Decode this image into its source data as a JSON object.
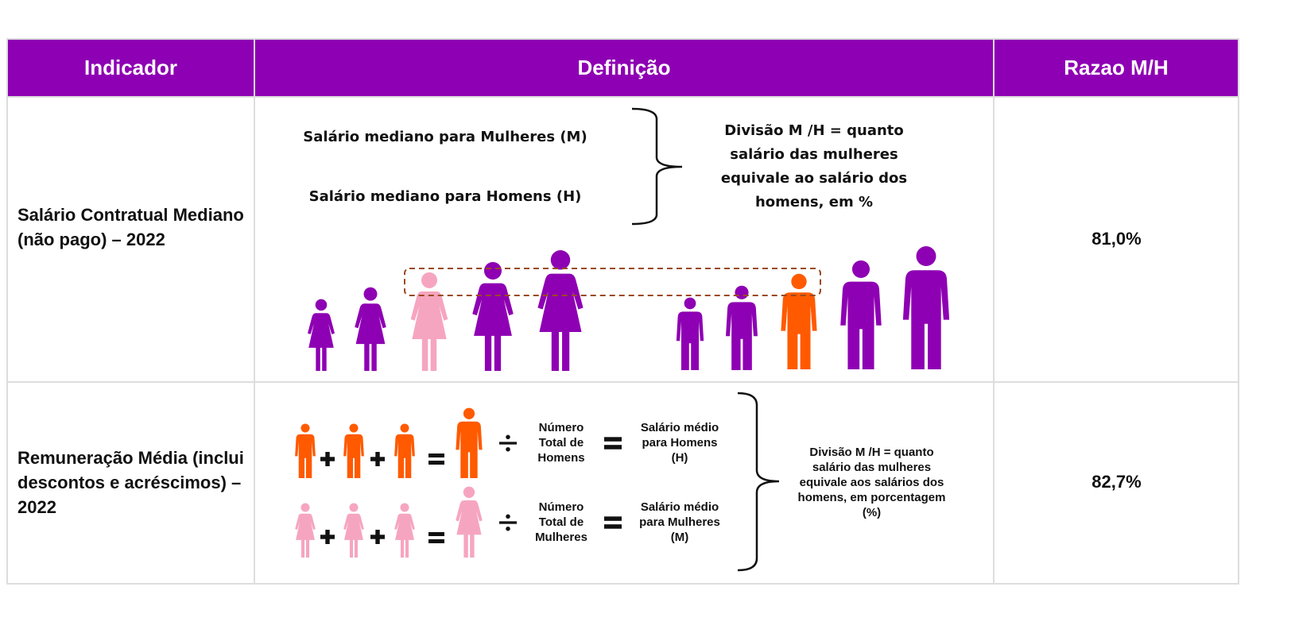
{
  "table": {
    "header": [
      "Indicador",
      "Definição",
      "Razao M/H"
    ],
    "rows": [
      {
        "indicator": "Salário Contratual Mediano (não pago) – 2022",
        "definition": {
          "women": "Salário mediano para Mulheres (M)",
          "men": "Salário mediano para Homens (H)",
          "note": "Divisão M /H = quanto salário das mulheres equivale ao salário dos homens, em %"
        },
        "ratio": "81,0%"
      },
      {
        "indicator": "Remuneração Média (inclui descontos e acréscimos) – 2022",
        "definition": {
          "men_total": "Número Total de Homens",
          "men_avg": "Salário médio para Homens (H)",
          "women_total": "Número Total de Mulheres",
          "women_avg": "Salário médio para Mulheres (M)",
          "note": "Divisão M /H = quanto salário das mulheres equivale aos salários dos homens, em porcentagem (%)"
        },
        "ratio": "82,7%"
      }
    ]
  }
}
